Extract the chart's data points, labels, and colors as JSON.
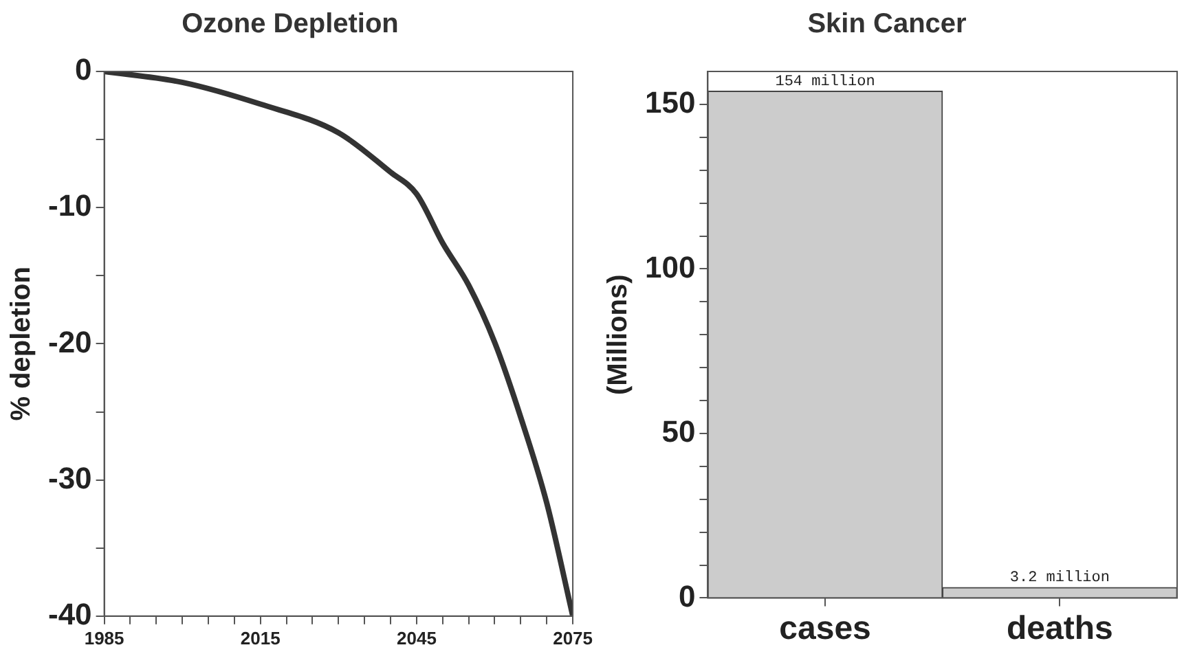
{
  "chart_data": [
    {
      "type": "line",
      "title": "Ozone Depletion",
      "ylabel": "% depletion",
      "color": "#333333",
      "x": [
        1985,
        2000,
        2015,
        2030,
        2040,
        2045,
        2050,
        2055,
        2060,
        2065,
        2070,
        2075
      ],
      "values": [
        0,
        -0.8,
        -2.4,
        -4.5,
        -7.4,
        -9.0,
        -12.6,
        -15.7,
        -19.9,
        -25.4,
        -31.7,
        -40
      ],
      "xlim": [
        1985,
        2075
      ],
      "xticks": [
        1985,
        {
          "value": 1990,
          "label": null
        },
        {
          "value": 1995,
          "label": null
        },
        {
          "value": 2000,
          "label": null
        },
        {
          "value": 2005,
          "label": null
        },
        {
          "value": 2010,
          "label": null
        },
        2015,
        {
          "value": 2020,
          "label": null
        },
        {
          "value": 2025,
          "label": null
        },
        {
          "value": 2030,
          "label": null
        },
        {
          "value": 2035,
          "label": null
        },
        {
          "value": 2040,
          "label": null
        },
        2045,
        {
          "value": 2050,
          "label": null
        },
        {
          "value": 2055,
          "label": null
        },
        {
          "value": 2060,
          "label": null
        },
        {
          "value": 2065,
          "label": null
        },
        {
          "value": 2070,
          "label": null
        },
        2075
      ],
      "ylim": [
        -40,
        0
      ],
      "yticks": [
        -40,
        {
          "value": -35,
          "label": null
        },
        -30,
        {
          "value": -25,
          "label": null
        },
        -20,
        {
          "value": -15,
          "label": null
        },
        -10,
        {
          "value": -5,
          "label": null
        },
        0
      ]
    },
    {
      "type": "bar",
      "title": "Skin Cancer",
      "ylabel": "(Millions)",
      "categories": [
        "cases",
        "deaths"
      ],
      "values": [
        154,
        3.2
      ],
      "color": "#cccccc",
      "value_labels": [
        "154 million",
        "3.2 million"
      ],
      "ylim": [
        0,
        160
      ],
      "yticks": [
        0,
        {
          "value": 10,
          "label": null
        },
        {
          "value": 20,
          "label": null
        },
        {
          "value": 30,
          "label": null
        },
        {
          "value": 40,
          "label": null
        },
        50,
        {
          "value": 60,
          "label": null
        },
        {
          "value": 70,
          "label": null
        },
        {
          "value": 80,
          "label": null
        },
        {
          "value": 90,
          "label": null
        },
        100,
        {
          "value": 110,
          "label": null
        },
        {
          "value": 120,
          "label": null
        },
        {
          "value": 130,
          "label": null
        },
        {
          "value": 140,
          "label": null
        },
        150
      ]
    }
  ]
}
